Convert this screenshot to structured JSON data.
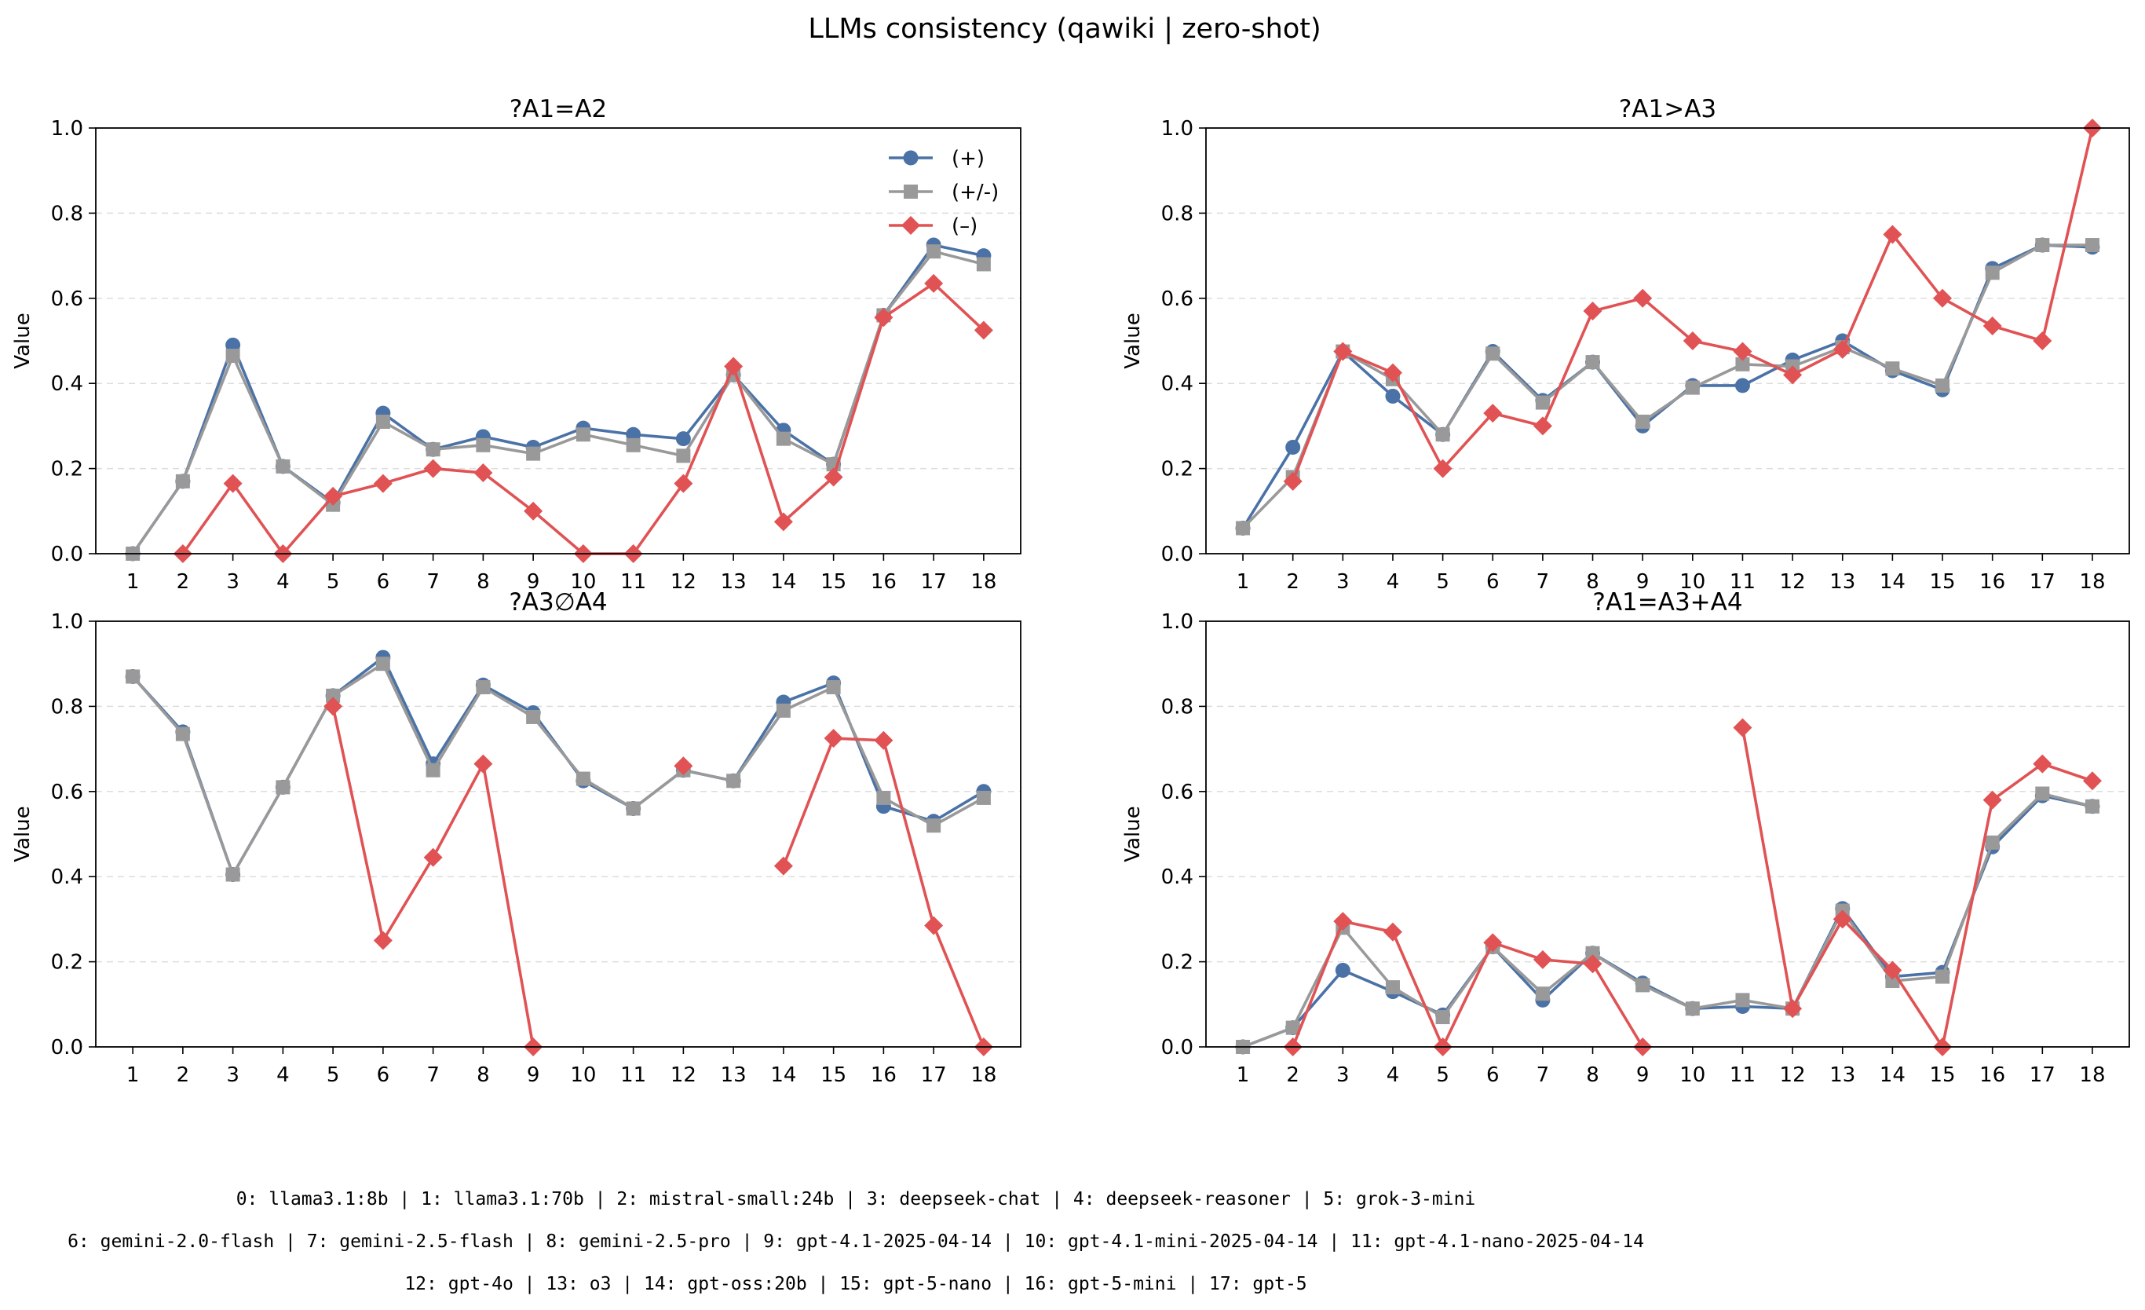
{
  "suptitle": "LLMs consistency (qawiki | zero-shot)",
  "legend_labels": {
    "pos": "(+)",
    "mix": "(+/-)",
    "neg": "(–)"
  },
  "colors": {
    "pos": "#4a72a6",
    "mix": "#999999",
    "neg": "#e05254"
  },
  "chart_data": [
    {
      "type": "line",
      "title": "?A1=A2",
      "ylabel": "Value",
      "xlabel": "",
      "ylim": [
        0,
        1
      ],
      "yticks": [
        "0.0",
        "0.2",
        "0.4",
        "0.6",
        "0.8",
        "1.0"
      ],
      "x": [
        "1",
        "2",
        "3",
        "4",
        "5",
        "6",
        "7",
        "8",
        "9",
        "10",
        "11",
        "12",
        "13",
        "14",
        "15",
        "16",
        "17",
        "18"
      ],
      "grid": "y-dashed",
      "legend": "top-right",
      "series": [
        {
          "key": "pos",
          "name": "(+)",
          "values": [
            0.0,
            0.17,
            0.49,
            0.205,
            0.12,
            0.33,
            0.245,
            0.275,
            0.25,
            0.295,
            0.28,
            0.27,
            0.42,
            0.29,
            0.21,
            0.56,
            0.725,
            0.7
          ]
        },
        {
          "key": "mix",
          "name": "(+/-)",
          "values": [
            0.0,
            0.17,
            0.465,
            0.205,
            0.115,
            0.31,
            0.245,
            0.255,
            0.235,
            0.28,
            0.255,
            0.23,
            0.42,
            0.27,
            0.21,
            0.56,
            0.71,
            0.68
          ]
        },
        {
          "key": "neg",
          "name": "(–)",
          "values": [
            null,
            0.0,
            0.165,
            0.0,
            0.135,
            0.165,
            0.2,
            0.19,
            0.1,
            0.0,
            0.0,
            0.165,
            0.44,
            0.075,
            0.18,
            0.555,
            0.635,
            0.525
          ]
        }
      ]
    },
    {
      "type": "line",
      "title": "?A1>A3",
      "ylabel": "Value",
      "xlabel": "",
      "ylim": [
        0,
        1
      ],
      "yticks": [
        "0.0",
        "0.2",
        "0.4",
        "0.6",
        "0.8",
        "1.0"
      ],
      "x": [
        "1",
        "2",
        "3",
        "4",
        "5",
        "6",
        "7",
        "8",
        "9",
        "10",
        "11",
        "12",
        "13",
        "14",
        "15",
        "16",
        "17",
        "18"
      ],
      "grid": "y-dashed",
      "series": [
        {
          "key": "pos",
          "name": "(+)",
          "values": [
            0.06,
            0.25,
            0.475,
            0.37,
            0.28,
            0.475,
            0.36,
            0.45,
            0.3,
            0.395,
            0.395,
            0.455,
            0.5,
            0.43,
            0.385,
            0.67,
            0.725,
            0.72
          ]
        },
        {
          "key": "mix",
          "name": "(+/-)",
          "values": [
            0.06,
            0.18,
            0.475,
            0.41,
            0.28,
            0.47,
            0.355,
            0.45,
            0.31,
            0.39,
            0.445,
            0.44,
            0.485,
            0.435,
            0.395,
            0.66,
            0.725,
            0.725
          ]
        },
        {
          "key": "neg",
          "name": "(–)",
          "values": [
            null,
            0.17,
            0.475,
            0.425,
            0.2,
            0.33,
            0.3,
            0.57,
            0.6,
            0.5,
            0.475,
            0.42,
            0.48,
            0.75,
            0.6,
            0.535,
            0.5,
            1.0
          ]
        }
      ]
    },
    {
      "type": "line",
      "title": "?A3∅A4",
      "ylabel": "Value",
      "xlabel": "",
      "ylim": [
        0,
        1
      ],
      "yticks": [
        "0.0",
        "0.2",
        "0.4",
        "0.6",
        "0.8",
        "1.0"
      ],
      "x": [
        "1",
        "2",
        "3",
        "4",
        "5",
        "6",
        "7",
        "8",
        "9",
        "10",
        "11",
        "12",
        "13",
        "14",
        "15",
        "16",
        "17",
        "18"
      ],
      "grid": "y-dashed",
      "series": [
        {
          "key": "pos",
          "name": "(+)",
          "values": [
            0.87,
            0.74,
            0.405,
            0.61,
            0.825,
            0.915,
            0.665,
            0.85,
            0.785,
            0.625,
            0.56,
            0.65,
            0.625,
            0.81,
            0.855,
            0.565,
            0.53,
            0.6
          ]
        },
        {
          "key": "mix",
          "name": "(+/-)",
          "values": [
            0.87,
            0.735,
            0.405,
            0.61,
            0.825,
            0.9,
            0.65,
            0.845,
            0.775,
            0.63,
            0.56,
            0.65,
            0.625,
            0.79,
            0.845,
            0.585,
            0.52,
            0.585
          ]
        },
        {
          "key": "neg",
          "name": "(–)",
          "values": [
            null,
            null,
            null,
            null,
            0.8,
            0.25,
            0.445,
            0.665,
            0.0,
            null,
            null,
            0.66,
            null,
            0.425,
            0.725,
            0.72,
            0.285,
            0.0
          ]
        }
      ]
    },
    {
      "type": "line",
      "title": "?A1=A3+A4",
      "ylabel": "Value",
      "xlabel": "",
      "ylim": [
        0,
        1
      ],
      "yticks": [
        "0.0",
        "0.2",
        "0.4",
        "0.6",
        "0.8",
        "1.0"
      ],
      "x": [
        "1",
        "2",
        "3",
        "4",
        "5",
        "6",
        "7",
        "8",
        "9",
        "10",
        "11",
        "12",
        "13",
        "14",
        "15",
        "16",
        "17",
        "18"
      ],
      "grid": "y-dashed",
      "series": [
        {
          "key": "pos",
          "name": "(+)",
          "values": [
            0.0,
            0.045,
            0.18,
            0.13,
            0.075,
            0.235,
            0.11,
            0.22,
            0.15,
            0.09,
            0.095,
            0.09,
            0.325,
            0.165,
            0.175,
            0.47,
            0.59,
            0.565
          ]
        },
        {
          "key": "mix",
          "name": "(+/-)",
          "values": [
            0.0,
            0.045,
            0.28,
            0.14,
            0.07,
            0.235,
            0.125,
            0.22,
            0.145,
            0.09,
            0.11,
            0.09,
            0.32,
            0.155,
            0.165,
            0.48,
            0.595,
            0.565
          ]
        },
        {
          "key": "neg",
          "name": "(–)",
          "values": [
            null,
            0.0,
            0.295,
            0.27,
            0.0,
            0.245,
            0.205,
            0.195,
            0.0,
            null,
            0.75,
            0.09,
            0.3,
            0.18,
            0.0,
            0.58,
            0.665,
            0.625
          ]
        }
      ]
    }
  ],
  "footer_lines": [
    "0: llama3.1:8b |  1: llama3.1:70b |  2: mistral-small:24b |  3: deepseek-chat |  4: deepseek-reasoner |  5: grok-3-mini",
    "6: gemini-2.0-flash |  7: gemini-2.5-flash |  8: gemini-2.5-pro |  9: gpt-4.1-2025-04-14 | 10: gpt-4.1-mini-2025-04-14 | 11: gpt-4.1-nano-2025-04-14",
    "12: gpt-4o | 13: o3 | 14: gpt-oss:20b | 15: gpt-5-nano | 16: gpt-5-mini | 17: gpt-5"
  ]
}
